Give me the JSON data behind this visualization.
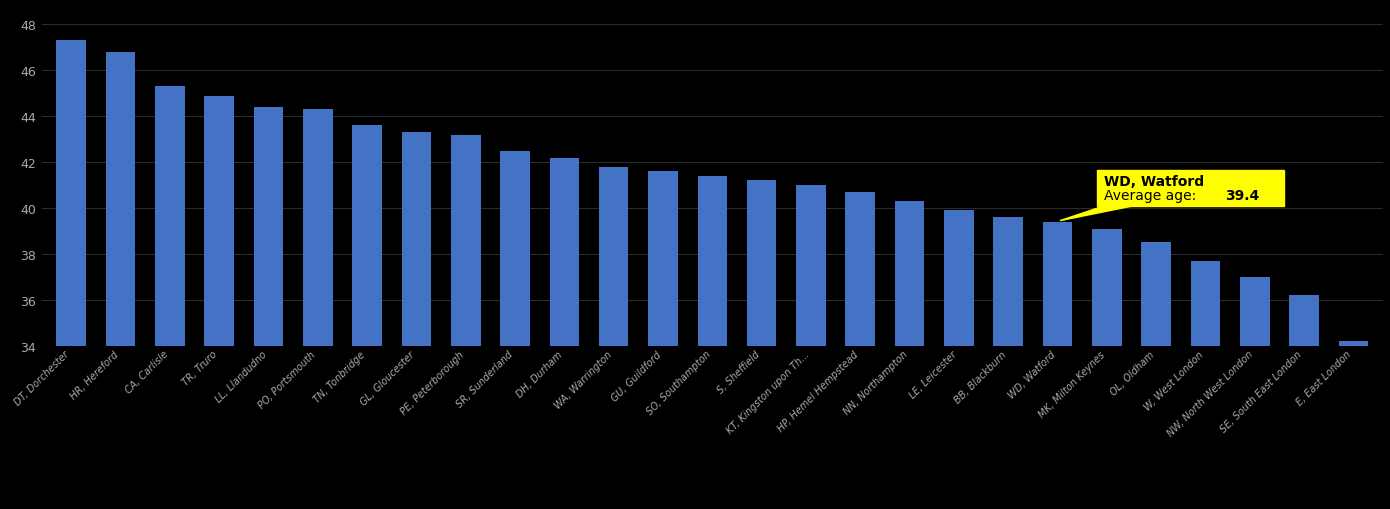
{
  "categories": [
    "DT, Dorchester",
    "HR, Hereford",
    "CA, Carlisle",
    "TR, Truro",
    "LL, Llandudno",
    "PO, Portsmouth",
    "TN, Tonbridge",
    "GL, Gloucester",
    "PE, Peterborough",
    "SR, Sunderland",
    "DH, Durham",
    "WA, Warrington",
    "GU, Guildford",
    "SO, Southampton",
    "S, Sheffield",
    "KT, Kingston upon Th...",
    "HP, Hemel Hempstead",
    "NN, Northampton",
    "LE, Leicester",
    "BB, Blackburn",
    "WD, Watford",
    "MK, Milton Keynes",
    "OL, Oldham",
    "W, West London",
    "NW, North West London",
    "SE, South East London",
    "E, East London"
  ],
  "values": [
    47.3,
    46.8,
    45.3,
    44.9,
    44.4,
    44.3,
    43.6,
    43.3,
    43.2,
    42.5,
    42.2,
    41.8,
    41.6,
    41.4,
    41.2,
    41.0,
    40.7,
    40.3,
    39.9,
    39.6,
    39.4,
    39.1,
    38.5,
    37.7,
    37.0,
    36.2,
    34.2
  ],
  "highlight_index": 20,
  "bar_color": "#4472C4",
  "background_color": "#000000",
  "text_color": "#aaaaaa",
  "ylim_min": 34,
  "ylim_max": 48.8,
  "yticks": [
    34,
    36,
    38,
    40,
    42,
    44,
    46,
    48
  ],
  "annotation_line1": "WD, Watford",
  "annotation_line2_normal": "Average age: ",
  "annotation_line2_bold": "39.4",
  "annotation_bg": "#ffff00",
  "grid_color": "#ffffff",
  "bar_width": 0.6
}
